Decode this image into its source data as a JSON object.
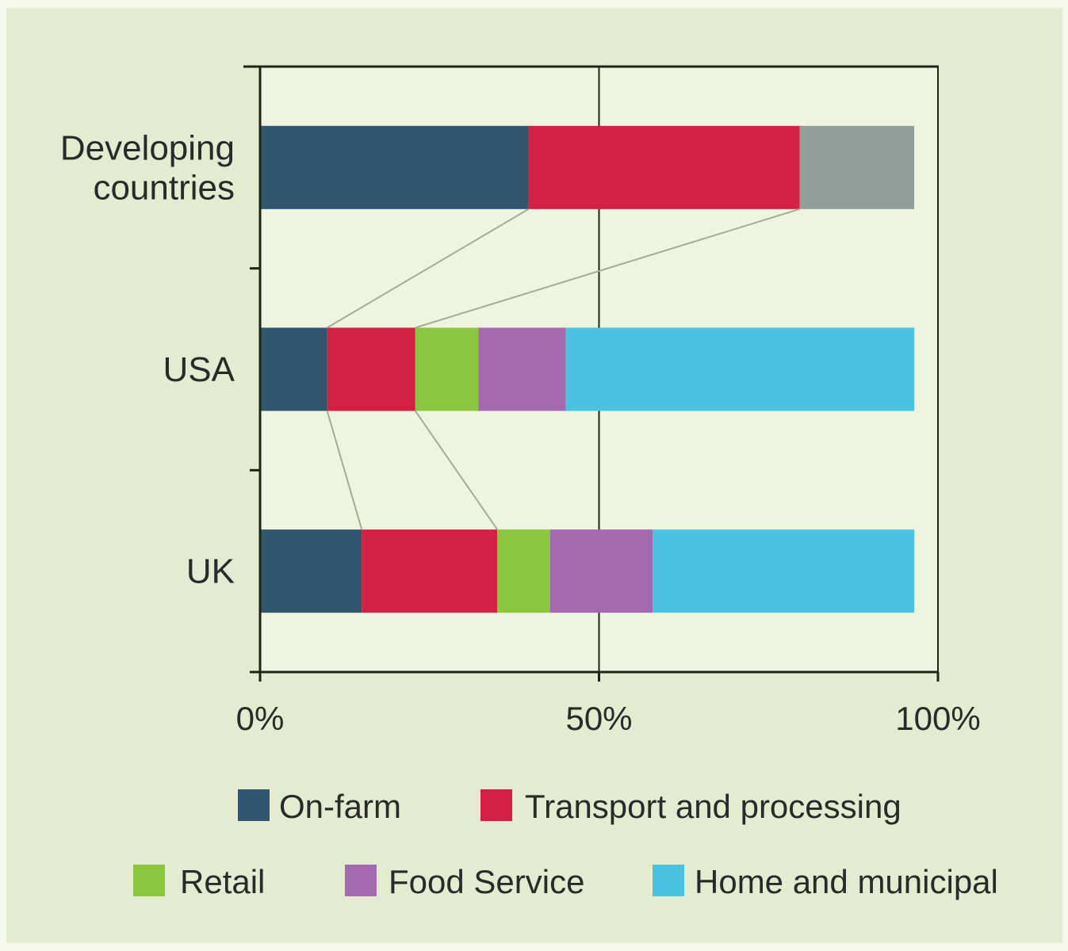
{
  "chart_data": {
    "type": "bar",
    "orientation": "horizontal",
    "stacked": true,
    "title": "",
    "xlabel": "",
    "ylabel": "",
    "xlim": [
      0,
      100
    ],
    "x_ticks": [
      "0%",
      "50%",
      "100%"
    ],
    "categories": [
      "Developing countries",
      "USA",
      "UK"
    ],
    "category_lines": [
      [
        "Developing",
        "countries"
      ],
      [
        "USA"
      ],
      [
        "UK"
      ]
    ],
    "series": [
      {
        "name": "On-farm",
        "color": "#33566f",
        "values": [
          39.6,
          9.9,
          15.0
        ]
      },
      {
        "name": "Transport and processing",
        "color": "#d42043",
        "values": [
          40.0,
          13.0,
          20.0
        ]
      },
      {
        "name": "Retail",
        "color": "#8cc63f",
        "values": [
          0,
          9.3,
          7.8
        ]
      },
      {
        "name": "Food Service",
        "color": "#a569b0",
        "values": [
          0,
          12.9,
          15.1
        ]
      },
      {
        "name": "Home and municipal",
        "color": "#4bc3e0",
        "values": [
          0,
          51.4,
          38.6
        ]
      },
      {
        "color": "#939f9a",
        "values": [
          16.9,
          0,
          0
        ]
      }
    ],
    "connector_lines": true,
    "grid": false,
    "legend_placement": "bottom",
    "colors": {
      "background": "#e3ecd0",
      "plot_background": "#eef4df",
      "axis": "#1e2418",
      "connector": "#a6ab98"
    }
  }
}
